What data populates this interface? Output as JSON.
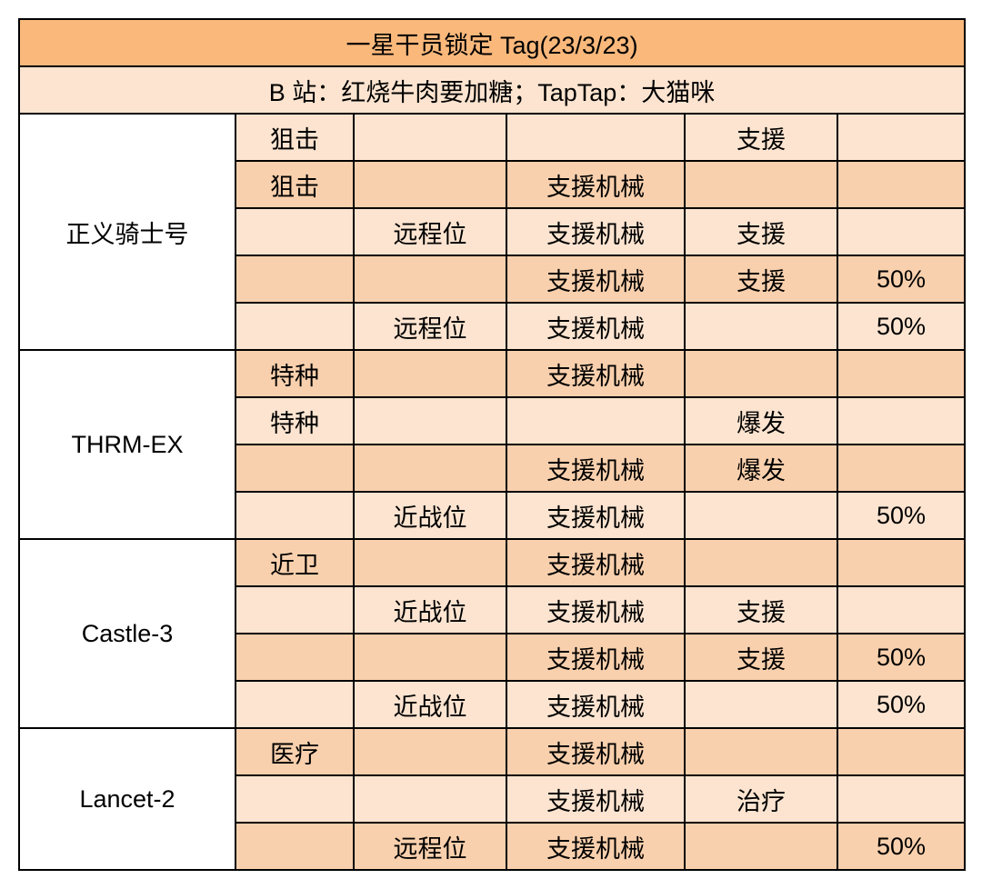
{
  "header": {
    "title": "一星干员锁定 Tag(23/3/23)",
    "subtitle": "B 站：红烧牛肉要加糖；TapTap：大猫咪"
  },
  "operators": [
    {
      "name": "正义骑士号",
      "rows": [
        {
          "fill": "f0",
          "c1": "狙击",
          "c2": "",
          "c3": "",
          "c4": "支援",
          "c5": ""
        },
        {
          "fill": "f1",
          "c1": "狙击",
          "c2": "",
          "c3": "支援机械",
          "c4": "",
          "c5": ""
        },
        {
          "fill": "f0",
          "c1": "",
          "c2": "远程位",
          "c3": "支援机械",
          "c4": "支援",
          "c5": ""
        },
        {
          "fill": "f1",
          "c1": "",
          "c2": "",
          "c3": "支援机械",
          "c4": "支援",
          "c5": "50%"
        },
        {
          "fill": "f0",
          "c1": "",
          "c2": "远程位",
          "c3": "支援机械",
          "c4": "",
          "c5": "50%"
        }
      ]
    },
    {
      "name": "THRM-EX",
      "rows": [
        {
          "fill": "f1",
          "c1": "特种",
          "c2": "",
          "c3": "支援机械",
          "c4": "",
          "c5": ""
        },
        {
          "fill": "f0",
          "c1": "特种",
          "c2": "",
          "c3": "",
          "c4": "爆发",
          "c5": ""
        },
        {
          "fill": "f1",
          "c1": "",
          "c2": "",
          "c3": "支援机械",
          "c4": "爆发",
          "c5": ""
        },
        {
          "fill": "f0",
          "c1": "",
          "c2": "近战位",
          "c3": "支援机械",
          "c4": "",
          "c5": "50%"
        }
      ]
    },
    {
      "name": "Castle-3",
      "rows": [
        {
          "fill": "f1",
          "c1": "近卫",
          "c2": "",
          "c3": "支援机械",
          "c4": "",
          "c5": ""
        },
        {
          "fill": "f0",
          "c1": "",
          "c2": "近战位",
          "c3": "支援机械",
          "c4": "支援",
          "c5": ""
        },
        {
          "fill": "f1",
          "c1": "",
          "c2": "",
          "c3": "支援机械",
          "c4": "支援",
          "c5": "50%"
        },
        {
          "fill": "f0",
          "c1": "",
          "c2": "近战位",
          "c3": "支援机械",
          "c4": "",
          "c5": "50%"
        }
      ]
    },
    {
      "name": "Lancet-2",
      "rows": [
        {
          "fill": "f1",
          "c1": "医疗",
          "c2": "",
          "c3": "支援机械",
          "c4": "",
          "c5": ""
        },
        {
          "fill": "f0",
          "c1": "",
          "c2": "",
          "c3": "支援机械",
          "c4": "治疗",
          "c5": ""
        },
        {
          "fill": "f1",
          "c1": "",
          "c2": "远程位",
          "c3": "支援机械",
          "c4": "",
          "c5": "50%"
        }
      ]
    }
  ],
  "colors": {
    "header_bg": "#fab87b",
    "subheader_bg": "#fce4d0",
    "fill_light": "#fce4d0",
    "fill_dark": "#f9d0ad",
    "operator_bg": "#ffffff",
    "border": "#000000"
  },
  "column_widths": {
    "operator": 238,
    "c1": 130,
    "c2": 168,
    "c3": 196,
    "c4": 168,
    "c5": 140
  }
}
